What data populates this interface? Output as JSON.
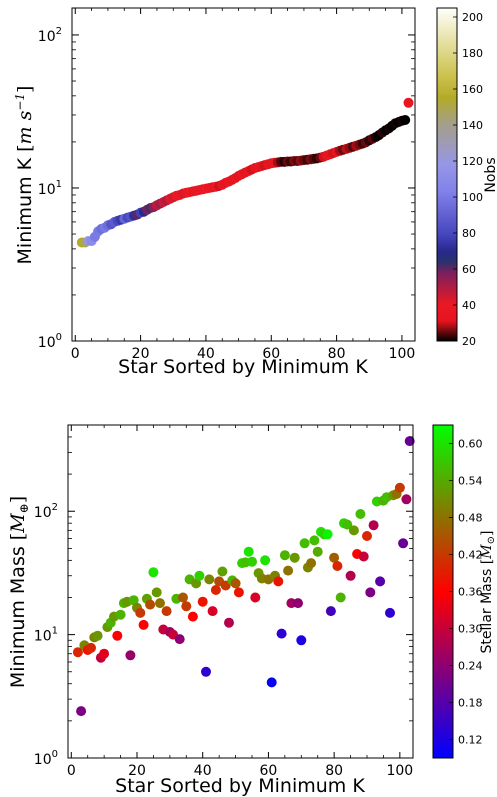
{
  "chart_data": [
    {
      "type": "scatter",
      "xlabel": "Star Sorted by Minimum K",
      "ylabel": "Minimum K [m s^-1]",
      "yscale": "log",
      "xlim": [
        -1,
        104
      ],
      "ylim": [
        1,
        150
      ],
      "x_ticks": [
        0,
        20,
        40,
        60,
        80,
        100
      ],
      "y_ticks": [
        {
          "value": 1,
          "base": "10",
          "exp": "0"
        },
        {
          "value": 10,
          "base": "10",
          "exp": "1"
        },
        {
          "value": 100,
          "base": "10",
          "exp": "2"
        }
      ],
      "colorbar": {
        "label": "Nobs",
        "range": [
          20,
          205
        ],
        "ticks": [
          20,
          40,
          60,
          80,
          100,
          120,
          140,
          160,
          180,
          200
        ],
        "colormap": "gist_stern"
      },
      "points": [
        {
          "x": 2,
          "y": 4.4,
          "c": 155
        },
        {
          "x": 3,
          "y": 4.4,
          "c": 150
        },
        {
          "x": 4,
          "y": 4.5,
          "c": 120
        },
        {
          "x": 5,
          "y": 4.5,
          "c": 110
        },
        {
          "x": 6,
          "y": 4.8,
          "c": 100
        },
        {
          "x": 7,
          "y": 5.2,
          "c": 100
        },
        {
          "x": 8,
          "y": 5.4,
          "c": 95
        },
        {
          "x": 9,
          "y": 5.5,
          "c": 100
        },
        {
          "x": 10,
          "y": 5.7,
          "c": 95
        },
        {
          "x": 11,
          "y": 5.8,
          "c": 85
        },
        {
          "x": 12,
          "y": 6.0,
          "c": 88
        },
        {
          "x": 13,
          "y": 6.1,
          "c": 80
        },
        {
          "x": 14,
          "y": 6.2,
          "c": 75
        },
        {
          "x": 15,
          "y": 6.3,
          "c": 92
        },
        {
          "x": 16,
          "y": 6.4,
          "c": 80
        },
        {
          "x": 17,
          "y": 6.5,
          "c": 85
        },
        {
          "x": 18,
          "y": 6.6,
          "c": 72
        },
        {
          "x": 19,
          "y": 6.7,
          "c": 60
        },
        {
          "x": 20,
          "y": 6.9,
          "c": 78
        },
        {
          "x": 21,
          "y": 7.0,
          "c": 70
        },
        {
          "x": 22,
          "y": 7.2,
          "c": 58
        },
        {
          "x": 23,
          "y": 7.4,
          "c": 62
        },
        {
          "x": 24,
          "y": 7.5,
          "c": 55
        },
        {
          "x": 25,
          "y": 7.7,
          "c": 48
        },
        {
          "x": 26,
          "y": 7.9,
          "c": 52
        },
        {
          "x": 27,
          "y": 8.1,
          "c": 45
        },
        {
          "x": 28,
          "y": 8.3,
          "c": 50
        },
        {
          "x": 29,
          "y": 8.5,
          "c": 42
        },
        {
          "x": 30,
          "y": 8.7,
          "c": 45
        },
        {
          "x": 31,
          "y": 8.9,
          "c": 40
        },
        {
          "x": 32,
          "y": 9.0,
          "c": 38
        },
        {
          "x": 33,
          "y": 9.2,
          "c": 44
        },
        {
          "x": 34,
          "y": 9.3,
          "c": 36
        },
        {
          "x": 35,
          "y": 9.4,
          "c": 40
        },
        {
          "x": 36,
          "y": 9.5,
          "c": 35
        },
        {
          "x": 37,
          "y": 9.6,
          "c": 42
        },
        {
          "x": 38,
          "y": 9.7,
          "c": 38
        },
        {
          "x": 39,
          "y": 9.8,
          "c": 36
        },
        {
          "x": 40,
          "y": 9.9,
          "c": 40
        },
        {
          "x": 41,
          "y": 10.0,
          "c": 35
        },
        {
          "x": 42,
          "y": 10.1,
          "c": 33
        },
        {
          "x": 43,
          "y": 10.2,
          "c": 38
        },
        {
          "x": 44,
          "y": 10.3,
          "c": 30
        },
        {
          "x": 45,
          "y": 10.5,
          "c": 34
        },
        {
          "x": 46,
          "y": 10.8,
          "c": 32
        },
        {
          "x": 47,
          "y": 11.0,
          "c": 36
        },
        {
          "x": 48,
          "y": 11.3,
          "c": 33
        },
        {
          "x": 49,
          "y": 11.6,
          "c": 35
        },
        {
          "x": 50,
          "y": 12.0,
          "c": 32
        },
        {
          "x": 51,
          "y": 12.3,
          "c": 34
        },
        {
          "x": 52,
          "y": 12.6,
          "c": 31
        },
        {
          "x": 53,
          "y": 12.9,
          "c": 33
        },
        {
          "x": 54,
          "y": 13.2,
          "c": 30
        },
        {
          "x": 55,
          "y": 13.5,
          "c": 32
        },
        {
          "x": 56,
          "y": 13.7,
          "c": 34
        },
        {
          "x": 57,
          "y": 13.9,
          "c": 31
        },
        {
          "x": 58,
          "y": 14.1,
          "c": 30
        },
        {
          "x": 59,
          "y": 14.3,
          "c": 33
        },
        {
          "x": 60,
          "y": 14.5,
          "c": 32
        },
        {
          "x": 61,
          "y": 14.6,
          "c": 35
        },
        {
          "x": 62,
          "y": 14.7,
          "c": 28
        },
        {
          "x": 63,
          "y": 14.8,
          "c": 24
        },
        {
          "x": 64,
          "y": 14.8,
          "c": 22
        },
        {
          "x": 65,
          "y": 14.9,
          "c": 25
        },
        {
          "x": 66,
          "y": 14.9,
          "c": 23
        },
        {
          "x": 67,
          "y": 15.0,
          "c": 26
        },
        {
          "x": 68,
          "y": 15.0,
          "c": 24
        },
        {
          "x": 69,
          "y": 15.1,
          "c": 27
        },
        {
          "x": 70,
          "y": 15.2,
          "c": 25
        },
        {
          "x": 71,
          "y": 15.3,
          "c": 23
        },
        {
          "x": 72,
          "y": 15.4,
          "c": 26
        },
        {
          "x": 73,
          "y": 15.5,
          "c": 24
        },
        {
          "x": 74,
          "y": 15.6,
          "c": 22
        },
        {
          "x": 75,
          "y": 15.8,
          "c": 25
        },
        {
          "x": 76,
          "y": 16.0,
          "c": 30
        },
        {
          "x": 77,
          "y": 16.3,
          "c": 35
        },
        {
          "x": 78,
          "y": 16.6,
          "c": 33
        },
        {
          "x": 79,
          "y": 16.9,
          "c": 30
        },
        {
          "x": 80,
          "y": 17.2,
          "c": 32
        },
        {
          "x": 81,
          "y": 17.5,
          "c": 28
        },
        {
          "x": 82,
          "y": 17.8,
          "c": 25
        },
        {
          "x": 83,
          "y": 18.0,
          "c": 29
        },
        {
          "x": 84,
          "y": 18.3,
          "c": 27
        },
        {
          "x": 85,
          "y": 18.6,
          "c": 24
        },
        {
          "x": 86,
          "y": 18.9,
          "c": 28
        },
        {
          "x": 87,
          "y": 19.2,
          "c": 26
        },
        {
          "x": 88,
          "y": 19.5,
          "c": 23
        },
        {
          "x": 89,
          "y": 19.9,
          "c": 25
        },
        {
          "x": 90,
          "y": 20.5,
          "c": 22
        },
        {
          "x": 91,
          "y": 21.0,
          "c": 24
        },
        {
          "x": 92,
          "y": 21.5,
          "c": 21
        },
        {
          "x": 93,
          "y": 22.2,
          "c": 20
        },
        {
          "x": 94,
          "y": 23.0,
          "c": 22
        },
        {
          "x": 95,
          "y": 23.8,
          "c": 20
        },
        {
          "x": 96,
          "y": 24.5,
          "c": 21
        },
        {
          "x": 97,
          "y": 25.5,
          "c": 20
        },
        {
          "x": 98,
          "y": 26.5,
          "c": 21
        },
        {
          "x": 99,
          "y": 27.0,
          "c": 20
        },
        {
          "x": 100,
          "y": 27.5,
          "c": 21
        },
        {
          "x": 101,
          "y": 27.8,
          "c": 20
        },
        {
          "x": 102,
          "y": 36.0,
          "c": 35
        }
      ]
    },
    {
      "type": "scatter",
      "xlabel": "Star Sorted by Minimum K",
      "ylabel": "Minimum Mass [M⊕]",
      "yscale": "log",
      "xlim": [
        -1,
        104
      ],
      "ylim": [
        1,
        500
      ],
      "x_ticks": [
        0,
        20,
        40,
        60,
        80,
        100
      ],
      "y_ticks": [
        {
          "value": 1,
          "base": "10",
          "exp": "0"
        },
        {
          "value": 10,
          "base": "10",
          "exp": "1"
        },
        {
          "value": 100,
          "base": "10",
          "exp": "2"
        }
      ],
      "colorbar": {
        "label": "Stellar Mass [M⊙]",
        "range": [
          0.09,
          0.63
        ],
        "ticks": [
          "0.12",
          "0.18",
          "0.24",
          "0.30",
          "0.36",
          "0.42",
          "0.48",
          "0.54",
          "0.60"
        ],
        "colormap": "brg"
      },
      "points": [
        {
          "x": 2,
          "y": 7.2,
          "c": 0.4
        },
        {
          "x": 3,
          "y": 2.4,
          "c": 0.22
        },
        {
          "x": 4,
          "y": 8.2,
          "c": 0.5
        },
        {
          "x": 5,
          "y": 7.5,
          "c": 0.38
        },
        {
          "x": 6,
          "y": 7.8,
          "c": 0.4
        },
        {
          "x": 7,
          "y": 9.5,
          "c": 0.5
        },
        {
          "x": 8,
          "y": 9.8,
          "c": 0.52
        },
        {
          "x": 9,
          "y": 6.5,
          "c": 0.3
        },
        {
          "x": 10,
          "y": 7.0,
          "c": 0.33
        },
        {
          "x": 11,
          "y": 11.5,
          "c": 0.52
        },
        {
          "x": 12,
          "y": 12.5,
          "c": 0.55
        },
        {
          "x": 13,
          "y": 14.0,
          "c": 0.52
        },
        {
          "x": 14,
          "y": 9.8,
          "c": 0.36
        },
        {
          "x": 15,
          "y": 14.5,
          "c": 0.55
        },
        {
          "x": 16,
          "y": 18.0,
          "c": 0.55
        },
        {
          "x": 17,
          "y": 18.5,
          "c": 0.52
        },
        {
          "x": 18,
          "y": 6.8,
          "c": 0.25
        },
        {
          "x": 19,
          "y": 19.0,
          "c": 0.55
        },
        {
          "x": 20,
          "y": 16.5,
          "c": 0.5
        },
        {
          "x": 21,
          "y": 15.0,
          "c": 0.42
        },
        {
          "x": 22,
          "y": 12.0,
          "c": 0.36
        },
        {
          "x": 23,
          "y": 19.5,
          "c": 0.53
        },
        {
          "x": 24,
          "y": 17.5,
          "c": 0.44
        },
        {
          "x": 25,
          "y": 32.0,
          "c": 0.6
        },
        {
          "x": 26,
          "y": 22.0,
          "c": 0.52
        },
        {
          "x": 27,
          "y": 18.0,
          "c": 0.48
        },
        {
          "x": 28,
          "y": 11.0,
          "c": 0.3
        },
        {
          "x": 29,
          "y": 15.5,
          "c": 0.42
        },
        {
          "x": 30,
          "y": 10.5,
          "c": 0.26
        },
        {
          "x": 31,
          "y": 10.0,
          "c": 0.3
        },
        {
          "x": 32,
          "y": 19.5,
          "c": 0.55
        },
        {
          "x": 33,
          "y": 9.2,
          "c": 0.24
        },
        {
          "x": 34,
          "y": 20.0,
          "c": 0.45
        },
        {
          "x": 35,
          "y": 17.0,
          "c": 0.42
        },
        {
          "x": 36,
          "y": 28.0,
          "c": 0.55
        },
        {
          "x": 37,
          "y": 14.0,
          "c": 0.36
        },
        {
          "x": 38,
          "y": 26.0,
          "c": 0.52
        },
        {
          "x": 39,
          "y": 30.0,
          "c": 0.58
        },
        {
          "x": 40,
          "y": 18.5,
          "c": 0.38
        },
        {
          "x": 41,
          "y": 5.0,
          "c": 0.14
        },
        {
          "x": 42,
          "y": 28.0,
          "c": 0.5
        },
        {
          "x": 43,
          "y": 15.5,
          "c": 0.32
        },
        {
          "x": 44,
          "y": 23.0,
          "c": 0.4
        },
        {
          "x": 45,
          "y": 27.0,
          "c": 0.44
        },
        {
          "x": 46,
          "y": 32.5,
          "c": 0.53
        },
        {
          "x": 47,
          "y": 25.0,
          "c": 0.42
        },
        {
          "x": 48,
          "y": 12.5,
          "c": 0.28
        },
        {
          "x": 49,
          "y": 27.5,
          "c": 0.55
        },
        {
          "x": 50,
          "y": 26.0,
          "c": 0.45
        },
        {
          "x": 51,
          "y": 22.0,
          "c": 0.38
        },
        {
          "x": 52,
          "y": 38.0,
          "c": 0.58
        },
        {
          "x": 53,
          "y": 38.5,
          "c": 0.56
        },
        {
          "x": 54,
          "y": 47.0,
          "c": 0.6
        },
        {
          "x": 55,
          "y": 39.0,
          "c": 0.58
        },
        {
          "x": 56,
          "y": 20.0,
          "c": 0.32
        },
        {
          "x": 57,
          "y": 31.5,
          "c": 0.52
        },
        {
          "x": 58,
          "y": 28.5,
          "c": 0.5
        },
        {
          "x": 59,
          "y": 40.0,
          "c": 0.6
        },
        {
          "x": 60,
          "y": 28.0,
          "c": 0.48
        },
        {
          "x": 61,
          "y": 4.1,
          "c": 0.1
        },
        {
          "x": 62,
          "y": 30.0,
          "c": 0.5
        },
        {
          "x": 63,
          "y": 27.0,
          "c": 0.38
        },
        {
          "x": 64,
          "y": 10.2,
          "c": 0.14
        },
        {
          "x": 65,
          "y": 44.0,
          "c": 0.55
        },
        {
          "x": 66,
          "y": 33.0,
          "c": 0.48
        },
        {
          "x": 67,
          "y": 18.0,
          "c": 0.26
        },
        {
          "x": 68,
          "y": 42.0,
          "c": 0.52
        },
        {
          "x": 69,
          "y": 18.0,
          "c": 0.24
        },
        {
          "x": 70,
          "y": 9.0,
          "c": 0.12
        },
        {
          "x": 71,
          "y": 55.0,
          "c": 0.56
        },
        {
          "x": 72,
          "y": 35.0,
          "c": 0.5
        },
        {
          "x": 73,
          "y": 38.0,
          "c": 0.48
        },
        {
          "x": 74,
          "y": 58.0,
          "c": 0.56
        },
        {
          "x": 75,
          "y": 47.0,
          "c": 0.54
        },
        {
          "x": 76,
          "y": 68.0,
          "c": 0.6
        },
        {
          "x": 77,
          "y": 65.0,
          "c": 0.58
        },
        {
          "x": 78,
          "y": 65.0,
          "c": 0.62
        },
        {
          "x": 79,
          "y": 15.5,
          "c": 0.16
        },
        {
          "x": 80,
          "y": 42.0,
          "c": 0.46
        },
        {
          "x": 81,
          "y": 36.0,
          "c": 0.4
        },
        {
          "x": 82,
          "y": 20.0,
          "c": 0.55
        },
        {
          "x": 83,
          "y": 80.0,
          "c": 0.58
        },
        {
          "x": 84,
          "y": 78.0,
          "c": 0.56
        },
        {
          "x": 85,
          "y": 30.0,
          "c": 0.28
        },
        {
          "x": 86,
          "y": 70.0,
          "c": 0.52
        },
        {
          "x": 87,
          "y": 45.0,
          "c": 0.36
        },
        {
          "x": 88,
          "y": 95.0,
          "c": 0.56
        },
        {
          "x": 89,
          "y": 43.0,
          "c": 0.3
        },
        {
          "x": 90,
          "y": 63.0,
          "c": 0.4
        },
        {
          "x": 91,
          "y": 22.0,
          "c": 0.22
        },
        {
          "x": 92,
          "y": 77.0,
          "c": 0.28
        },
        {
          "x": 93,
          "y": 120.0,
          "c": 0.58
        },
        {
          "x": 94,
          "y": 27.0,
          "c": 0.18
        },
        {
          "x": 95,
          "y": 122.0,
          "c": 0.55
        },
        {
          "x": 96,
          "y": 130.0,
          "c": 0.56
        },
        {
          "x": 97,
          "y": 15.0,
          "c": 0.14
        },
        {
          "x": 98,
          "y": 135.0,
          "c": 0.52
        },
        {
          "x": 99,
          "y": 138.0,
          "c": 0.48
        },
        {
          "x": 100,
          "y": 155.0,
          "c": 0.42
        },
        {
          "x": 101,
          "y": 55.0,
          "c": 0.2
        },
        {
          "x": 102,
          "y": 125.0,
          "c": 0.26
        },
        {
          "x": 103,
          "y": 370.0,
          "c": 0.2
        }
      ]
    }
  ]
}
